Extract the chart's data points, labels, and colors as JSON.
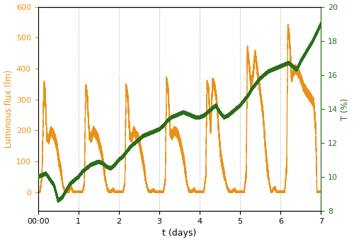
{
  "xlabel": "t (days)",
  "ylabel_left": "Luminous flux (lm)",
  "ylabel_right": "T (%)",
  "xlim": [
    0,
    7
  ],
  "ylim_left": [
    -60,
    600
  ],
  "ylim_right": [
    8,
    20
  ],
  "yticks_left": [
    0,
    100,
    200,
    300,
    400,
    500,
    600
  ],
  "yticks_right": [
    8,
    10,
    12,
    14,
    16,
    18,
    20
  ],
  "xtick_labels": [
    "00:00",
    "1",
    "2",
    "3",
    "4",
    "5",
    "6",
    "7"
  ],
  "xtick_positions": [
    0,
    1,
    2,
    3,
    4,
    5,
    6,
    7
  ],
  "color_orange": "#E8921A",
  "color_green": "#2A6E1A",
  "grid_color": "#AAAAAA",
  "bg_color": "#FFFFFF",
  "linewidth_orange": 1.0,
  "linewidth_green": 1.6,
  "figsize": [
    5.0,
    3.42
  ],
  "dpi": 100,
  "orange_xp": [
    0.0,
    0.05,
    0.1,
    0.15,
    0.18,
    0.22,
    0.27,
    0.32,
    0.37,
    0.42,
    0.47,
    0.52,
    0.57,
    0.62,
    0.67,
    0.72,
    0.77,
    0.82,
    0.87,
    0.9,
    0.95,
    1.0,
    1.05,
    1.1,
    1.15,
    1.18,
    1.22,
    1.27,
    1.32,
    1.37,
    1.42,
    1.47,
    1.52,
    1.57,
    1.62,
    1.67,
    1.72,
    1.77,
    1.82,
    1.87,
    1.9,
    1.95,
    2.0,
    2.05,
    2.1,
    2.15,
    2.18,
    2.22,
    2.27,
    2.32,
    2.37,
    2.42,
    2.47,
    2.52,
    2.57,
    2.62,
    2.67,
    2.72,
    2.77,
    2.82,
    2.87,
    2.9,
    2.95,
    3.0,
    3.05,
    3.1,
    3.15,
    3.18,
    3.22,
    3.27,
    3.32,
    3.37,
    3.42,
    3.47,
    3.52,
    3.57,
    3.62,
    3.67,
    3.72,
    3.77,
    3.82,
    3.87,
    3.9,
    3.95,
    4.0,
    4.05,
    4.1,
    4.15,
    4.18,
    4.22,
    4.27,
    4.32,
    4.37,
    4.42,
    4.47,
    4.52,
    4.57,
    4.62,
    4.67,
    4.72,
    4.77,
    4.82,
    4.87,
    4.9,
    4.95,
    5.0,
    5.05,
    5.1,
    5.15,
    5.18,
    5.22,
    5.27,
    5.32,
    5.37,
    5.42,
    5.47,
    5.52,
    5.57,
    5.62,
    5.67,
    5.72,
    5.77,
    5.82,
    5.87,
    5.9,
    5.95,
    6.0,
    6.05,
    6.1,
    6.15,
    6.18,
    6.22,
    6.27,
    6.32,
    6.37,
    6.42,
    6.47,
    6.52,
    6.57,
    6.62,
    6.67,
    6.72,
    6.77,
    6.82,
    6.87,
    6.9,
    6.95,
    7.0
  ],
  "orange_yp": [
    0,
    0,
    50,
    350,
    320,
    180,
    170,
    200,
    190,
    175,
    150,
    100,
    70,
    20,
    5,
    0,
    5,
    20,
    0,
    0,
    0,
    0,
    0,
    0,
    30,
    340,
    310,
    185,
    175,
    200,
    190,
    180,
    155,
    130,
    90,
    40,
    10,
    0,
    5,
    10,
    0,
    0,
    0,
    0,
    0,
    30,
    340,
    310,
    185,
    175,
    200,
    185,
    180,
    155,
    120,
    85,
    35,
    8,
    0,
    5,
    8,
    0,
    0,
    0,
    0,
    0,
    40,
    360,
    330,
    195,
    185,
    200,
    195,
    185,
    160,
    130,
    95,
    40,
    10,
    0,
    5,
    10,
    0,
    0,
    0,
    0,
    0,
    50,
    350,
    330,
    200,
    360,
    340,
    300,
    200,
    120,
    80,
    50,
    20,
    5,
    0,
    5,
    10,
    0,
    0,
    0,
    0,
    0,
    60,
    460,
    420,
    340,
    380,
    450,
    400,
    350,
    300,
    250,
    150,
    80,
    30,
    0,
    10,
    15,
    0,
    0,
    0,
    0,
    0,
    80,
    530,
    500,
    370,
    390,
    400,
    390,
    380,
    360,
    340,
    330,
    320,
    310,
    300,
    290,
    200,
    0,
    0,
    0
  ],
  "green_xp": [
    0.0,
    0.2,
    0.4,
    0.5,
    0.6,
    0.7,
    0.8,
    0.9,
    1.0,
    1.1,
    1.2,
    1.3,
    1.4,
    1.5,
    1.6,
    1.7,
    1.8,
    1.9,
    2.0,
    2.1,
    2.2,
    2.3,
    2.4,
    2.5,
    2.6,
    2.7,
    2.8,
    2.9,
    3.0,
    3.1,
    3.2,
    3.3,
    3.4,
    3.5,
    3.6,
    3.7,
    3.8,
    3.9,
    4.0,
    4.1,
    4.2,
    4.3,
    4.4,
    4.5,
    4.6,
    4.7,
    4.8,
    4.9,
    5.0,
    5.1,
    5.2,
    5.3,
    5.4,
    5.5,
    5.6,
    5.7,
    5.8,
    5.9,
    6.0,
    6.1,
    6.2,
    6.3,
    6.4,
    6.5,
    6.6,
    6.7,
    6.8,
    6.9,
    7.0
  ],
  "green_yp": [
    10.0,
    10.2,
    9.5,
    8.6,
    8.8,
    9.2,
    9.6,
    9.8,
    10.0,
    10.3,
    10.5,
    10.7,
    10.8,
    10.9,
    10.8,
    10.6,
    10.5,
    10.7,
    11.0,
    11.2,
    11.5,
    11.8,
    12.0,
    12.2,
    12.4,
    12.5,
    12.6,
    12.7,
    12.8,
    13.0,
    13.3,
    13.5,
    13.6,
    13.7,
    13.8,
    13.7,
    13.6,
    13.5,
    13.5,
    13.6,
    13.8,
    14.0,
    14.2,
    13.8,
    13.5,
    13.6,
    13.8,
    14.0,
    14.2,
    14.5,
    14.8,
    15.2,
    15.5,
    15.8,
    16.0,
    16.2,
    16.3,
    16.4,
    16.5,
    16.6,
    16.7,
    16.5,
    16.3,
    16.8,
    17.2,
    17.6,
    18.0,
    18.5,
    19.0
  ]
}
